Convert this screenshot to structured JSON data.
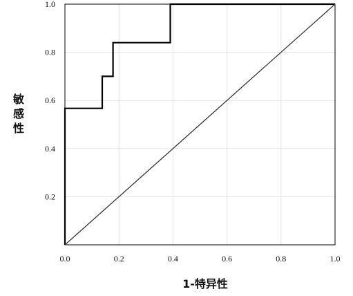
{
  "chart_data": {
    "type": "line",
    "title": "",
    "xlabel": "1-特异性",
    "ylabel": "敏感性",
    "xlim": [
      0,
      1
    ],
    "ylim": [
      0,
      1
    ],
    "grid": true,
    "x_ticks": [
      "0.0",
      "0.2",
      "0.4",
      "0.6",
      "0.8",
      "1.0"
    ],
    "y_ticks": [
      "0.2",
      "0.4",
      "0.6",
      "0.8",
      "1.0"
    ],
    "series": [
      {
        "style": "step",
        "x": [
          0.0,
          0.0,
          0.138,
          0.138,
          0.178,
          0.178,
          0.39,
          0.39,
          1.0
        ],
        "y": [
          0.0,
          0.567,
          0.567,
          0.7,
          0.7,
          0.84,
          0.84,
          1.0,
          1.0
        ]
      },
      {
        "style": "reference",
        "x": [
          0.0,
          1.0
        ],
        "y": [
          0.0,
          1.0
        ]
      }
    ],
    "colors": {
      "curve": "#000000",
      "reference": "#333333",
      "grid": "#e3e3e3",
      "frame": "#000000"
    }
  }
}
